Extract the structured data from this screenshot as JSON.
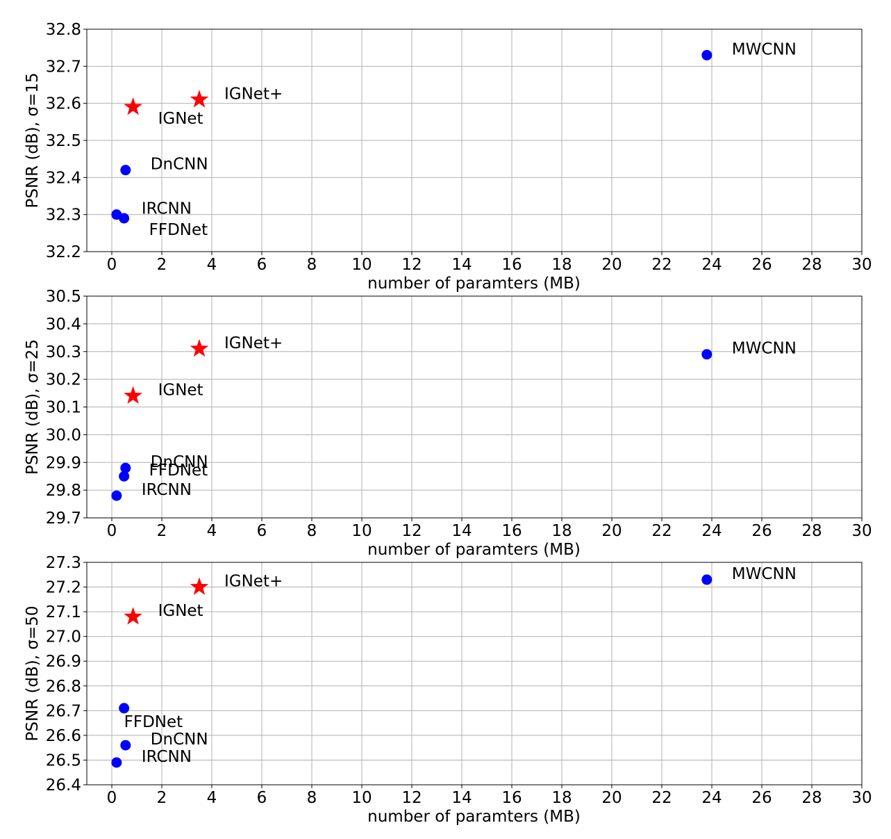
{
  "colors": {
    "baseline": "#0000ff",
    "proposed": "#ff0000",
    "grid": "#b0b0b0"
  },
  "chart_data": [
    {
      "type": "scatter",
      "ylabel": "PSNR (dB), σ=15",
      "xlabel": "number of paramters (MB)",
      "xlim": [
        -1,
        30
      ],
      "ylim": [
        32.2,
        32.8
      ],
      "xticks": [
        0,
        2,
        4,
        6,
        8,
        10,
        12,
        14,
        16,
        18,
        20,
        22,
        24,
        26,
        28,
        30
      ],
      "yticks": [
        32.2,
        32.3,
        32.4,
        32.5,
        32.6,
        32.7,
        32.8
      ],
      "ytick_labels": [
        "32.2",
        "32.3",
        "32.4",
        "32.5",
        "32.6",
        "32.7",
        "32.8"
      ],
      "grid": true,
      "points": [
        {
          "label": "MWCNN",
          "x": 23.8,
          "y": 32.73,
          "marker": "circle",
          "label_pos": "right"
        },
        {
          "label": "IGNet+",
          "x": 3.5,
          "y": 32.61,
          "marker": "star",
          "label_pos": "right"
        },
        {
          "label": "IGNet",
          "x": 0.85,
          "y": 32.59,
          "marker": "star",
          "label_pos": "below-right"
        },
        {
          "label": "DnCNN",
          "x": 0.55,
          "y": 32.42,
          "marker": "circle",
          "label_pos": "right"
        },
        {
          "label": "IRCNN",
          "x": 0.19,
          "y": 32.3,
          "marker": "circle",
          "label_pos": "right"
        },
        {
          "label": "FFDNet",
          "x": 0.49,
          "y": 32.29,
          "marker": "circle",
          "label_pos": "below-right"
        }
      ]
    },
    {
      "type": "scatter",
      "ylabel": "PSNR (dB), σ=25",
      "xlabel": "number of paramters (MB)",
      "xlim": [
        -1,
        30
      ],
      "ylim": [
        29.7,
        30.5
      ],
      "xticks": [
        0,
        2,
        4,
        6,
        8,
        10,
        12,
        14,
        16,
        18,
        20,
        22,
        24,
        26,
        28,
        30
      ],
      "yticks": [
        29.7,
        29.8,
        29.9,
        30.0,
        30.1,
        30.2,
        30.3,
        30.4,
        30.5
      ],
      "ytick_labels": [
        "29.7",
        "29.8",
        "29.9",
        "30.0",
        "30.1",
        "30.2",
        "30.3",
        "30.4",
        "30.5"
      ],
      "grid": true,
      "points": [
        {
          "label": "MWCNN",
          "x": 23.8,
          "y": 30.29,
          "marker": "circle",
          "label_pos": "right"
        },
        {
          "label": "IGNet+",
          "x": 3.5,
          "y": 30.31,
          "marker": "star",
          "label_pos": "right"
        },
        {
          "label": "IGNet",
          "x": 0.85,
          "y": 30.14,
          "marker": "star",
          "label_pos": "right"
        },
        {
          "label": "DnCNN",
          "x": 0.55,
          "y": 29.88,
          "marker": "circle",
          "label_pos": "right"
        },
        {
          "label": "FFDNet",
          "x": 0.49,
          "y": 29.85,
          "marker": "circle",
          "label_pos": "right"
        },
        {
          "label": "IRCNN",
          "x": 0.19,
          "y": 29.78,
          "marker": "circle",
          "label_pos": "right"
        }
      ]
    },
    {
      "type": "scatter",
      "ylabel": "PSNR (dB), σ=50",
      "xlabel": "number of paramters (MB)",
      "xlim": [
        -1,
        30
      ],
      "ylim": [
        26.4,
        27.3
      ],
      "xticks": [
        0,
        2,
        4,
        6,
        8,
        10,
        12,
        14,
        16,
        18,
        20,
        22,
        24,
        26,
        28,
        30
      ],
      "yticks": [
        26.4,
        26.5,
        26.6,
        26.7,
        26.8,
        26.9,
        27.0,
        27.1,
        27.2,
        27.3
      ],
      "ytick_labels": [
        "26.4",
        "26.5",
        "26.6",
        "26.7",
        "26.8",
        "26.9",
        "27.0",
        "27.1",
        "27.2",
        "27.3"
      ],
      "grid": true,
      "points": [
        {
          "label": "MWCNN",
          "x": 23.8,
          "y": 27.23,
          "marker": "circle",
          "label_pos": "right"
        },
        {
          "label": "IGNet+",
          "x": 3.5,
          "y": 27.2,
          "marker": "star",
          "label_pos": "right"
        },
        {
          "label": "IGNet",
          "x": 0.85,
          "y": 27.08,
          "marker": "star",
          "label_pos": "right"
        },
        {
          "label": "FFDNet",
          "x": 0.49,
          "y": 26.71,
          "marker": "circle",
          "label_pos": "below"
        },
        {
          "label": "DnCNN",
          "x": 0.55,
          "y": 26.56,
          "marker": "circle",
          "label_pos": "right"
        },
        {
          "label": "IRCNN",
          "x": 0.19,
          "y": 26.49,
          "marker": "circle",
          "label_pos": "right"
        }
      ]
    }
  ]
}
